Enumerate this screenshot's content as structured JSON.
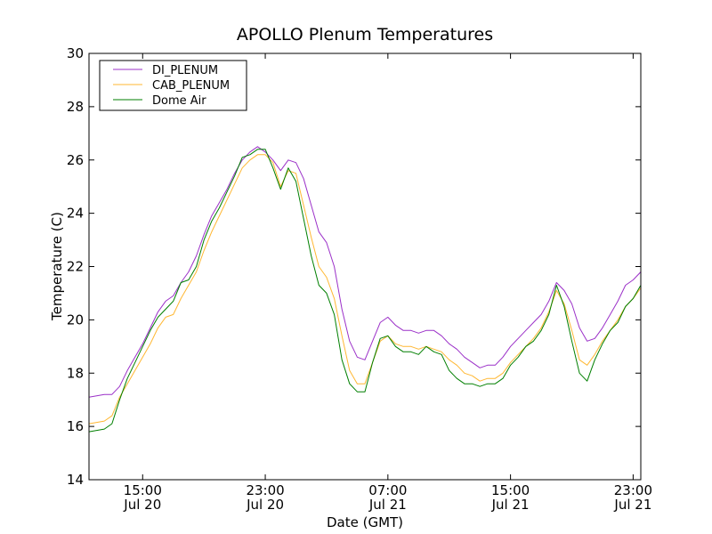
{
  "chart_data": {
    "type": "line",
    "title": "APOLLO Plenum Temperatures",
    "xlabel": "Date (GMT)",
    "ylabel": "Temperature (C)",
    "ylim": [
      14,
      30
    ],
    "xlim_hours": [
      11.5,
      47.5
    ],
    "x_unit": "hours since Jul 20 00:00 GMT",
    "yticks": [
      14,
      16,
      18,
      20,
      22,
      24,
      26,
      28,
      30
    ],
    "xticks": [
      {
        "x": 15,
        "time": "15:00",
        "date": "Jul 20"
      },
      {
        "x": 23,
        "time": "23:00",
        "date": "Jul 20"
      },
      {
        "x": 31,
        "time": "07:00",
        "date": "Jul 21"
      },
      {
        "x": 39,
        "time": "15:00",
        "date": "Jul 21"
      },
      {
        "x": 47,
        "time": "23:00",
        "date": "Jul 21"
      }
    ],
    "legend": {
      "position": "top-left",
      "entries": [
        "DI_PLENUM",
        "CAB_PLENUM",
        "Dome Air"
      ]
    },
    "series": [
      {
        "name": "DI_PLENUM",
        "color": "#9b30c8",
        "x": [
          11.5,
          12.5,
          13.0,
          13.5,
          14.0,
          14.5,
          15.0,
          15.5,
          16.0,
          16.5,
          17.0,
          17.5,
          18.0,
          18.5,
          19.0,
          19.5,
          20.0,
          20.5,
          21.0,
          21.5,
          22.0,
          22.5,
          23.0,
          23.5,
          24.0,
          24.5,
          25.0,
          25.5,
          26.0,
          26.5,
          27.0,
          27.5,
          28.0,
          28.5,
          29.0,
          29.5,
          30.0,
          30.5,
          31.0,
          31.5,
          32.0,
          32.5,
          33.0,
          33.5,
          34.0,
          34.5,
          35.0,
          35.5,
          36.0,
          36.5,
          37.0,
          37.5,
          38.0,
          38.5,
          39.0,
          39.5,
          40.0,
          40.5,
          41.0,
          41.5,
          42.0,
          42.5,
          43.0,
          43.5,
          44.0,
          44.5,
          45.0,
          45.5,
          46.0,
          46.5,
          47.0,
          47.5
        ],
        "values": [
          17.1,
          17.2,
          17.2,
          17.5,
          18.1,
          18.6,
          19.1,
          19.7,
          20.3,
          20.7,
          20.9,
          21.4,
          21.8,
          22.4,
          23.2,
          23.9,
          24.4,
          24.9,
          25.5,
          26.0,
          26.3,
          26.5,
          26.3,
          26.0,
          25.6,
          26.0,
          25.9,
          25.3,
          24.3,
          23.3,
          22.9,
          22.0,
          20.4,
          19.2,
          18.6,
          18.5,
          19.2,
          19.9,
          20.1,
          19.8,
          19.6,
          19.6,
          19.5,
          19.6,
          19.6,
          19.4,
          19.1,
          18.9,
          18.6,
          18.4,
          18.2,
          18.3,
          18.3,
          18.6,
          19.0,
          19.3,
          19.6,
          19.9,
          20.2,
          20.7,
          21.4,
          21.1,
          20.6,
          19.7,
          19.2,
          19.3,
          19.7,
          20.2,
          20.7,
          21.3,
          21.5,
          21.8
        ]
      },
      {
        "name": "CAB_PLENUM",
        "color": "#ffb732",
        "x": [
          11.5,
          12.5,
          13.0,
          13.5,
          14.0,
          14.5,
          15.0,
          15.5,
          16.0,
          16.5,
          17.0,
          17.5,
          18.0,
          18.5,
          19.0,
          19.5,
          20.0,
          20.5,
          21.0,
          21.5,
          22.0,
          22.5,
          23.0,
          23.5,
          24.0,
          24.5,
          25.0,
          25.5,
          26.0,
          26.5,
          27.0,
          27.5,
          28.0,
          28.5,
          29.0,
          29.5,
          30.0,
          30.5,
          31.0,
          31.5,
          32.0,
          32.5,
          33.0,
          33.5,
          34.0,
          34.5,
          35.0,
          35.5,
          36.0,
          36.5,
          37.0,
          37.5,
          38.0,
          38.5,
          39.0,
          39.5,
          40.0,
          40.5,
          41.0,
          41.5,
          42.0,
          42.5,
          43.0,
          43.5,
          44.0,
          44.5,
          45.0,
          45.5,
          46.0,
          46.5,
          47.0,
          47.5
        ],
        "values": [
          16.1,
          16.2,
          16.4,
          17.1,
          17.6,
          18.1,
          18.6,
          19.1,
          19.7,
          20.1,
          20.2,
          20.8,
          21.3,
          21.8,
          22.6,
          23.3,
          23.9,
          24.5,
          25.1,
          25.7,
          26.0,
          26.2,
          26.2,
          25.9,
          25.0,
          25.6,
          25.5,
          24.3,
          23.1,
          22.0,
          21.6,
          20.8,
          19.4,
          18.1,
          17.6,
          17.6,
          18.4,
          19.2,
          19.4,
          19.1,
          19.0,
          19.0,
          18.9,
          19.0,
          18.9,
          18.8,
          18.5,
          18.3,
          18.0,
          17.9,
          17.7,
          17.8,
          17.8,
          18.0,
          18.4,
          18.7,
          19.0,
          19.3,
          19.7,
          20.3,
          21.1,
          20.6,
          19.6,
          18.5,
          18.3,
          18.7,
          19.2,
          19.6,
          20.0,
          20.5,
          20.8,
          21.2
        ]
      },
      {
        "name": "Dome Air",
        "color": "#007f00",
        "x": [
          11.5,
          12.5,
          13.0,
          13.5,
          14.0,
          14.5,
          15.0,
          15.5,
          16.0,
          16.5,
          17.0,
          17.5,
          18.0,
          18.5,
          19.0,
          19.5,
          20.0,
          20.5,
          21.0,
          21.5,
          22.0,
          22.5,
          23.0,
          23.5,
          24.0,
          24.5,
          25.0,
          25.5,
          26.0,
          26.5,
          27.0,
          27.5,
          28.0,
          28.5,
          29.0,
          29.5,
          30.0,
          30.5,
          31.0,
          31.5,
          32.0,
          32.5,
          33.0,
          33.5,
          34.0,
          34.5,
          35.0,
          35.5,
          36.0,
          36.5,
          37.0,
          37.5,
          38.0,
          38.5,
          39.0,
          39.5,
          40.0,
          40.5,
          41.0,
          41.5,
          42.0,
          42.5,
          43.0,
          43.5,
          44.0,
          44.5,
          45.0,
          45.5,
          46.0,
          46.5,
          47.0,
          47.5
        ],
        "values": [
          15.8,
          15.9,
          16.1,
          17.0,
          17.8,
          18.4,
          19.0,
          19.6,
          20.1,
          20.4,
          20.7,
          21.4,
          21.5,
          22.0,
          23.0,
          23.7,
          24.2,
          24.8,
          25.4,
          26.1,
          26.2,
          26.4,
          26.4,
          25.7,
          24.9,
          25.7,
          25.2,
          23.8,
          22.4,
          21.3,
          21.0,
          20.2,
          18.5,
          17.6,
          17.3,
          17.3,
          18.4,
          19.3,
          19.4,
          19.0,
          18.8,
          18.8,
          18.7,
          19.0,
          18.8,
          18.7,
          18.1,
          17.8,
          17.6,
          17.6,
          17.5,
          17.6,
          17.6,
          17.8,
          18.3,
          18.6,
          19.0,
          19.2,
          19.6,
          20.2,
          21.3,
          20.5,
          19.2,
          18.0,
          17.7,
          18.5,
          19.1,
          19.6,
          19.9,
          20.5,
          20.8,
          21.3
        ]
      }
    ]
  }
}
